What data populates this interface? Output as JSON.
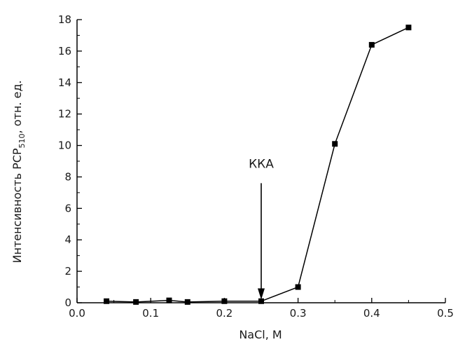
{
  "chart_data": {
    "type": "line",
    "title": "",
    "xlabel": "NaCl, M",
    "ylabel": {
      "main": "Интенсивность РСР",
      "subscript": "510",
      "suffix": ", отн. ед."
    },
    "xlim": [
      0.0,
      0.5
    ],
    "ylim": [
      0,
      18
    ],
    "xticks": [
      0.0,
      0.1,
      0.2,
      0.3,
      0.4,
      0.5
    ],
    "xtick_labels": [
      "0.0",
      "0.1",
      "0.2",
      "0.3",
      "0.4",
      "0.5"
    ],
    "yticks": [
      0,
      2,
      4,
      6,
      8,
      10,
      12,
      14,
      16,
      18
    ],
    "ytick_labels": [
      "0",
      "2",
      "4",
      "6",
      "8",
      "10",
      "12",
      "14",
      "16",
      "18"
    ],
    "grid": false,
    "series": [
      {
        "color": "#000000",
        "marker": "square",
        "x": [
          0.04,
          0.08,
          0.125,
          0.15,
          0.2,
          0.25,
          0.3,
          0.35,
          0.4,
          0.45
        ],
        "y": [
          0.1,
          0.05,
          0.15,
          0.05,
          0.1,
          0.1,
          1.0,
          10.1,
          16.4,
          17.5
        ]
      }
    ],
    "annotations": [
      {
        "text": "ККА",
        "arrow_x": 0.25,
        "arrow_from_y": 7.6,
        "arrow_to_y": 0.2
      }
    ]
  }
}
